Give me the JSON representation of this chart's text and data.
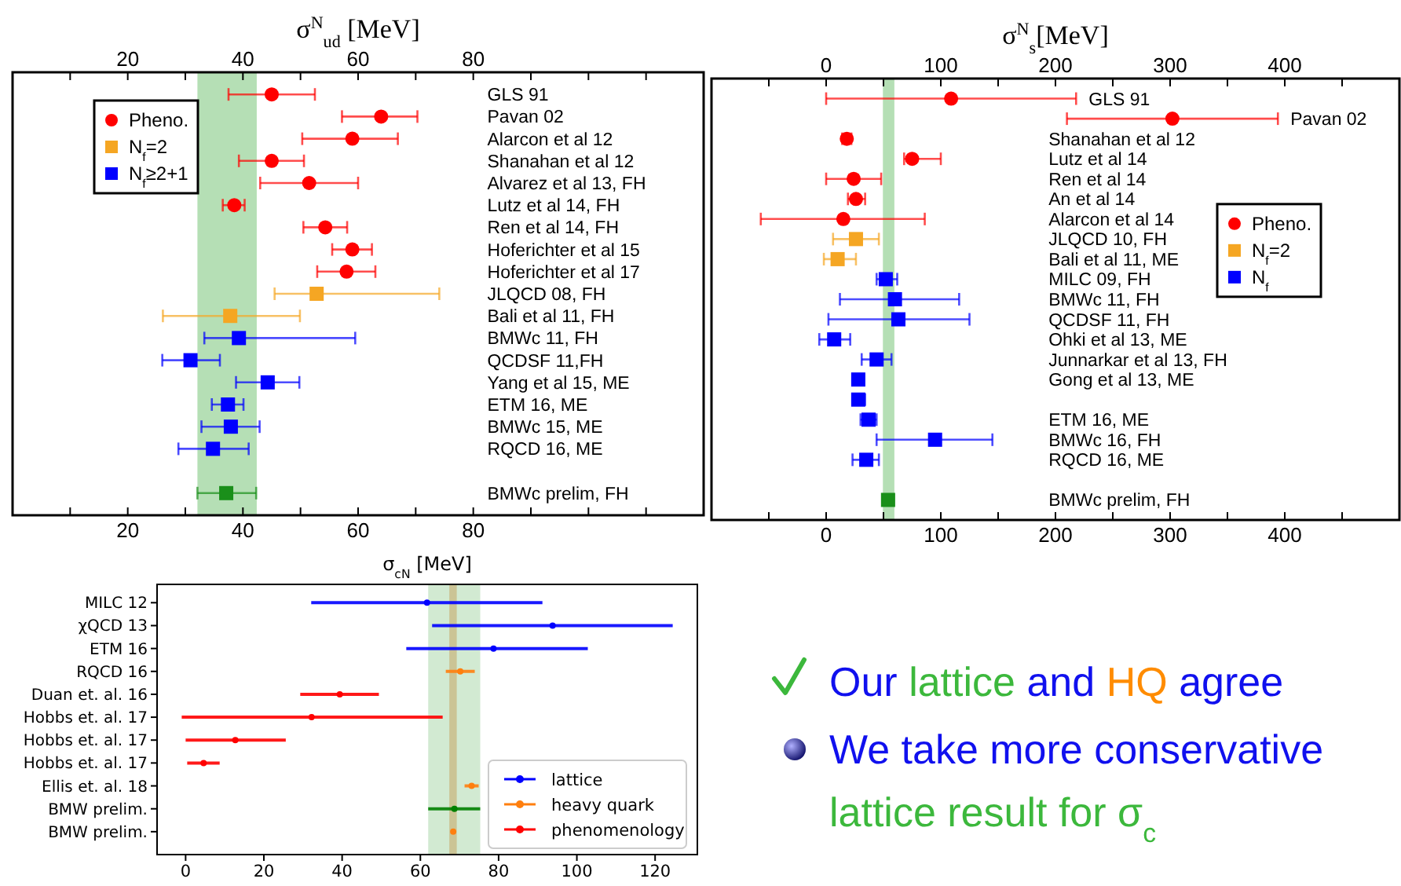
{
  "chart_data": [
    {
      "type": "scatter",
      "orientation": "horizontal",
      "title": "σ$^{N}$$_{ud}$ [MeV]",
      "legend": "top left",
      "categories": [
        "GLS 91",
        "Pavan 02",
        "Alarcon et al 12",
        "Shanahan et al 12",
        "Alvarez et al 13, FH",
        "Lutz et al 14, FH",
        "Ren et al 14, FH",
        "Hoferichter et al 15",
        "Hoferichter et al 17",
        "JLQCD 08, FH",
        "Bali et al 11, FH",
        "BMWc 11, FH",
        "QCDSF 11,FH",
        "Yang et al 15, ME",
        "ETM 16, ME",
        "BMWc 15, ME",
        "RQCD 16, ME",
        null,
        "BMWc prelim, FH"
      ],
      "series": [
        {
          "name": "Pheno.",
          "color": "#ff0000",
          "marker": "circle",
          "values": [
            45,
            64,
            59,
            45,
            51.5,
            38.5,
            54.3,
            59,
            58,
            null,
            null,
            null,
            null,
            null,
            null,
            null,
            null,
            null,
            null
          ],
          "errors": [
            [
              37.5,
              52.5
            ],
            [
              57.2,
              70.3
            ],
            [
              50.3,
              66.9
            ],
            [
              39.3,
              50.6
            ],
            [
              43,
              60
            ],
            [
              36.5,
              40.3
            ],
            [
              50.5,
              58.1
            ],
            [
              55.5,
              62.4
            ],
            [
              52.9,
              63
            ],
            null,
            null,
            null,
            null,
            null,
            null,
            null,
            null,
            null,
            null
          ]
        },
        {
          "name": "N$_{f}$=2",
          "color": "#f5a623",
          "marker": "square",
          "values": [
            null,
            null,
            null,
            null,
            null,
            null,
            null,
            null,
            null,
            52.8,
            37.8,
            null,
            null,
            null,
            null,
            null,
            null,
            null,
            null
          ],
          "errors": [
            null,
            null,
            null,
            null,
            null,
            null,
            null,
            null,
            null,
            [
              45.5,
              74.1
            ],
            [
              26.1,
              49.9
            ],
            null,
            null,
            null,
            null,
            null,
            null,
            null,
            null
          ]
        },
        {
          "name": "N$_{f}$≥2+1",
          "color": "#0000ff",
          "marker": "square",
          "values": [
            null,
            null,
            null,
            null,
            null,
            null,
            null,
            null,
            null,
            null,
            null,
            39.3,
            30.9,
            44.3,
            37.4,
            37.9,
            34.8,
            null,
            null
          ],
          "errors": [
            null,
            null,
            null,
            null,
            null,
            null,
            null,
            null,
            null,
            null,
            null,
            [
              33.3,
              59.5
            ],
            [
              26,
              36
            ],
            [
              38.8,
              49.8
            ],
            [
              34.6,
              40.1
            ],
            [
              32.8,
              42.9
            ],
            [
              28.8,
              41
            ],
            null,
            null
          ]
        },
        {
          "color": "#1a8f1a",
          "marker": "square",
          "values": [
            null,
            null,
            null,
            null,
            null,
            null,
            null,
            null,
            null,
            null,
            null,
            null,
            null,
            null,
            null,
            null,
            null,
            null,
            37.1
          ],
          "errors": [
            null,
            null,
            null,
            null,
            null,
            null,
            null,
            null,
            null,
            null,
            null,
            null,
            null,
            null,
            null,
            null,
            null,
            null,
            [
              32.1,
              42.3
            ]
          ]
        }
      ],
      "xlim": [
        0,
        120
      ],
      "xticks": [
        {
          "value": 10,
          "label": null
        },
        20,
        {
          "value": 30,
          "label": null
        },
        40,
        {
          "value": 50,
          "label": null
        },
        60,
        {
          "value": 70,
          "label": null
        },
        80,
        {
          "value": 90,
          "label": null
        },
        {
          "value": 100,
          "label": null
        },
        {
          "value": 110,
          "label": null
        }
      ],
      "x2lim": [
        0,
        120
      ],
      "x2ticks": [
        {
          "value": 10,
          "label": null
        },
        20,
        {
          "value": 30,
          "label": null
        },
        40,
        {
          "value": 50,
          "label": null
        },
        60,
        {
          "value": 70,
          "label": null
        },
        80,
        {
          "value": 90,
          "label": null
        },
        {
          "value": 100,
          "label": null
        },
        {
          "value": 110,
          "label": null
        }
      ],
      "bands": [
        {
          "axis": "x",
          "from": 32.1,
          "to": 42.4,
          "color": "#b5dfb5"
        }
      ]
    },
    {
      "type": "scatter",
      "orientation": "horizontal",
      "title": "σ$^{N}$$_{s}$[MeV]",
      "legend": "right",
      "categories": [
        "GLS 91",
        "Pavan 02",
        "Shanahan et al 12",
        "Lutz et al 14",
        "Ren et al 14",
        "An et al 14",
        "Alarcon et al 14",
        "JLQCD 10, FH",
        "Bali et al 11, ME",
        "MILC 09, FH",
        "BMWc 11, FH",
        "QCDSF 11, FH",
        "Ohki et al 13, ME",
        "Junnarkar et al 13, FH",
        "Gong et al 13, ME",
        null,
        "ETM 16, ME",
        "BMWc 16, FH",
        "RQCD 16, ME",
        null,
        "BMWc prelim, FH"
      ],
      "series": [
        {
          "name": "Pheno.",
          "color": "#ff0000",
          "marker": "circle",
          "values": [
            109,
            302,
            18,
            75,
            24,
            26,
            15,
            null,
            null,
            null,
            null,
            null,
            null,
            null,
            null,
            null,
            null,
            null,
            null,
            null,
            null
          ],
          "errors": [
            [
              0,
              218
            ],
            [
              210,
              394
            ],
            [
              14,
              22
            ],
            [
              68,
              100
            ],
            [
              0,
              48
            ],
            [
              19,
              34
            ],
            [
              -57,
              86
            ],
            null,
            null,
            null,
            null,
            null,
            null,
            null,
            null,
            null,
            null,
            null,
            null,
            null,
            null
          ]
        },
        {
          "name": "N$_{f}$=2",
          "color": "#f5a623",
          "marker": "square",
          "values": [
            null,
            null,
            null,
            null,
            null,
            null,
            null,
            26,
            10,
            null,
            null,
            null,
            null,
            null,
            null,
            null,
            null,
            null,
            null,
            null,
            null
          ],
          "errors": [
            null,
            null,
            null,
            null,
            null,
            null,
            null,
            [
              6,
              46
            ],
            [
              -2,
              26
            ],
            null,
            null,
            null,
            null,
            null,
            null,
            null,
            null,
            null,
            null,
            null,
            null
          ]
        },
        {
          "name": "N$_{f}$",
          "color": "#0000ff",
          "marker": "square",
          "values": [
            null,
            null,
            null,
            null,
            null,
            null,
            null,
            null,
            null,
            52,
            60,
            63,
            7,
            44,
            28,
            28,
            37,
            95,
            35,
            null,
            null
          ],
          "errors": [
            null,
            null,
            null,
            null,
            null,
            null,
            null,
            null,
            null,
            [
              44,
              62
            ],
            [
              12,
              116
            ],
            [
              2,
              125
            ],
            [
              -6,
              21
            ],
            [
              31,
              57
            ],
            [
              23,
              33
            ],
            [
              23,
              34
            ],
            [
              30,
              44
            ],
            [
              44,
              145
            ],
            [
              23,
              46
            ],
            null,
            null
          ]
        },
        {
          "color": "#1a8f1a",
          "marker": "square",
          "values": [
            null,
            null,
            null,
            null,
            null,
            null,
            null,
            null,
            null,
            null,
            null,
            null,
            null,
            null,
            null,
            null,
            null,
            null,
            null,
            null,
            54
          ],
          "errors": [
            null,
            null,
            null,
            null,
            null,
            null,
            null,
            null,
            null,
            null,
            null,
            null,
            null,
            null,
            null,
            null,
            null,
            null,
            null,
            null,
            [
              50,
              59
            ]
          ]
        }
      ],
      "xlim": [
        -100,
        500
      ],
      "xticks": [
        {
          "value": -50,
          "label": null
        },
        0,
        {
          "value": 50,
          "label": null
        },
        100,
        {
          "value": 150,
          "label": null
        },
        200,
        {
          "value": 250,
          "label": null
        },
        300,
        {
          "value": 350,
          "label": null
        },
        400,
        {
          "value": 450,
          "label": null
        }
      ],
      "x2lim": [
        -100,
        500
      ],
      "x2ticks": [
        {
          "value": -50,
          "label": null
        },
        0,
        {
          "value": 50,
          "label": null
        },
        100,
        {
          "value": 150,
          "label": null
        },
        200,
        {
          "value": 250,
          "label": null
        },
        300,
        {
          "value": 350,
          "label": null
        },
        400,
        {
          "value": 450,
          "label": null
        }
      ],
      "bands": [
        {
          "axis": "x",
          "from": 49.5,
          "to": 59.5,
          "color": "#b5dfb5"
        }
      ]
    },
    {
      "type": "scatter",
      "orientation": "horizontal",
      "title": "σ$_{cN}$ [MeV]",
      "legend": "bottom right",
      "categories": [
        "MILC 12",
        "χQCD 13",
        "ETM 16",
        "RQCD 16",
        "Duan et. al. 16",
        "Hobbs et. al. 17",
        "Hobbs et. al. 17",
        "Hobbs et. al. 17",
        "Ellis et. al. 18",
        "BMW prelim.",
        "BMW prelim."
      ],
      "series": [
        {
          "name": "lattice",
          "color": "#0000ff",
          "marker": "circle",
          "values": [
            61.7,
            93.8,
            78.7,
            null,
            null,
            null,
            null,
            null,
            null,
            null,
            null
          ],
          "errors": [
            [
              32.1,
              91.2
            ],
            [
              63,
              124.5
            ],
            [
              56.4,
              102.8
            ],
            null,
            null,
            null,
            null,
            null,
            null,
            null,
            null
          ]
        },
        {
          "name": "heavy quark",
          "color": "#ff7f0e",
          "marker": "circle",
          "values": [
            null,
            null,
            null,
            70.2,
            null,
            null,
            null,
            null,
            73.1,
            null,
            68.4
          ],
          "errors": [
            null,
            null,
            null,
            [
              66.5,
              73.9
            ],
            null,
            null,
            null,
            null,
            [
              71.3,
              74.9
            ],
            null,
            null
          ]
        },
        {
          "name": "phenomenology",
          "color": "#ff0000",
          "marker": "circle",
          "values": [
            null,
            null,
            null,
            null,
            39.4,
            32.2,
            12.7,
            4.6,
            null,
            null,
            null
          ],
          "errors": [
            null,
            null,
            null,
            null,
            [
              29.3,
              49.4
            ],
            [
              -1,
              65.7
            ],
            [
              0,
              25.6
            ],
            [
              0.4,
              8.7
            ],
            null,
            null,
            null
          ]
        },
        {
          "color": "#008000",
          "marker": "circle",
          "values": [
            null,
            null,
            null,
            null,
            null,
            null,
            null,
            null,
            null,
            68.7,
            null
          ],
          "errors": [
            null,
            null,
            null,
            null,
            null,
            null,
            null,
            null,
            null,
            [
              62,
              75.3
            ],
            null
          ]
        }
      ],
      "xlim": [
        -7.3,
        130.8
      ],
      "xticks": [
        0,
        20,
        40,
        60,
        80,
        100,
        120
      ],
      "bands": [
        {
          "axis": "x",
          "from": 62,
          "to": 75.3,
          "color": "#d2ead2"
        },
        {
          "axis": "x",
          "from": 67.4,
          "to": 69.3,
          "color": "#cbc495"
        }
      ]
    },
    {
      "type": "other",
      "annotations": [
        "Our",
        "lattice",
        "and",
        "HQ",
        "agree",
        "We take more conservative",
        "lattice result for σ$_{c}$"
      ],
      "colors": [
        "#1010ee",
        "#3cb83c",
        "#1010ee",
        "#ff8c00",
        "#1010ee",
        "#1010ee",
        "#3cb83c"
      ]
    }
  ]
}
